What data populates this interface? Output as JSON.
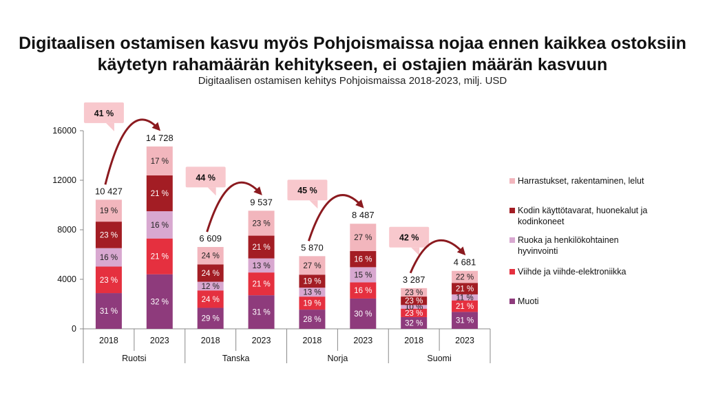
{
  "title": "Digitaalisen ostamisen kasvu myös Pohjoismaissa nojaa ennen kaikkea ostoksiin käytetyn rahamäärän kehitykseen, ei ostajien määrän kasvuun",
  "subtitle": "Digitaalisen ostamisen kehitys Pohjoismaissa 2018-2023, milj. USD",
  "chart_data": {
    "type": "bar",
    "stacked": true,
    "ylim": [
      0,
      16000
    ],
    "yticks": [
      "0",
      "4000",
      "8000",
      "12000",
      "16000"
    ],
    "groups": [
      {
        "name": "Ruotsi",
        "growth": "41 %",
        "bars": [
          {
            "year": "2018",
            "total": 10427,
            "total_label": "10 427",
            "shares": [
              31,
              23,
              16,
              23,
              19
            ],
            "share_labels": [
              "31 %",
              "23 %",
              "16 %",
              "23 %",
              "19 %"
            ]
          },
          {
            "year": "2023",
            "total": 14728,
            "total_label": "14 728",
            "shares": [
              32,
              21,
              16,
              21,
              17
            ],
            "share_labels": [
              "32 %",
              "21 %",
              "16 %",
              "21 %",
              "17 %"
            ]
          }
        ]
      },
      {
        "name": "Tanska",
        "growth": "44 %",
        "bars": [
          {
            "year": "2018",
            "total": 6609,
            "total_label": "6 609",
            "shares": [
              29,
              24,
              12,
              24,
              24
            ],
            "share_labels": [
              "29 %",
              "24 %",
              "12 %",
              "24 %",
              "24 %"
            ]
          },
          {
            "year": "2023",
            "total": 9537,
            "total_label": "9 537",
            "shares": [
              31,
              21,
              13,
              21,
              23
            ],
            "share_labels": [
              "31 %",
              "21 %",
              "13 %",
              "21 %",
              "23 %"
            ]
          }
        ]
      },
      {
        "name": "Norja",
        "growth": "45 %",
        "bars": [
          {
            "year": "2018",
            "total": 5870,
            "total_label": "5 870",
            "shares": [
              28,
              19,
              13,
              19,
              27
            ],
            "share_labels": [
              "28 %",
              "19 %",
              "13 %",
              "19 %",
              "27 %"
            ]
          },
          {
            "year": "2023",
            "total": 8487,
            "total_label": "8 487",
            "shares": [
              30,
              16,
              15,
              16,
              27
            ],
            "share_labels": [
              "30 %",
              "16 %",
              "15 %",
              "16 %",
              "27 %"
            ]
          }
        ]
      },
      {
        "name": "Suomi",
        "growth": "42 %",
        "bars": [
          {
            "year": "2018",
            "total": 3287,
            "total_label": "3 287",
            "shares": [
              32,
              23,
              10,
              23,
              23
            ],
            "share_labels": [
              "32 %",
              "23 %",
              "10 %",
              "23 %",
              "23 %"
            ]
          },
          {
            "year": "2023",
            "total": 4681,
            "total_label": "4 681",
            "shares": [
              31,
              21,
              11,
              21,
              22
            ],
            "share_labels": [
              "31 %",
              "21 %",
              "11 %",
              "21 %",
              "22 %"
            ]
          }
        ]
      }
    ],
    "series": [
      {
        "name": "Muoti",
        "color": "#8e3b7c"
      },
      {
        "name": "Viihde ja viihde-elektroniikka",
        "color": "#e5303f"
      },
      {
        "name": "Ruoka ja henkilökohtainen hyvinvointi",
        "color": "#d8a8d0"
      },
      {
        "name": "Kodin käyttötavarat, huonekalut ja kodinkoneet",
        "color": "#a31d24"
      },
      {
        "name": "Harrastukset, rakentaminen, lelut",
        "color": "#f2b6bd"
      }
    ],
    "legend_order": [
      4,
      3,
      2,
      1,
      0
    ],
    "legend_position": "right",
    "grid": false
  }
}
